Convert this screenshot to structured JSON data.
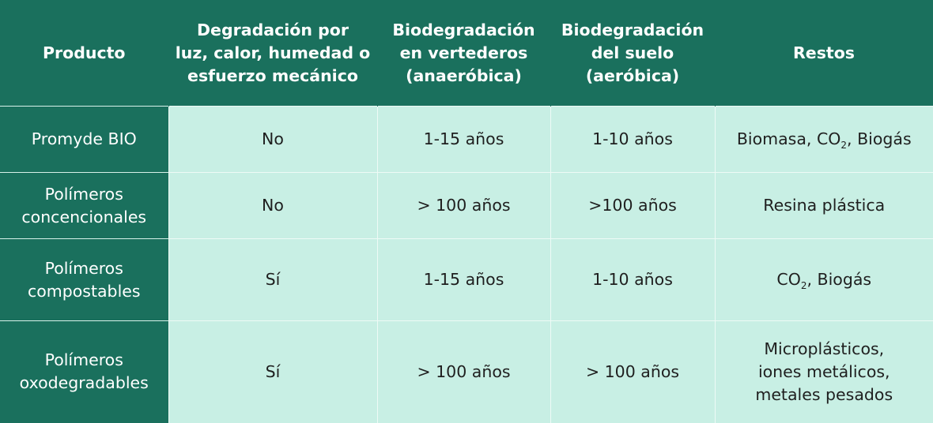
{
  "table": {
    "headers": [
      "Producto",
      "Degradación por\nluz, calor, humedad o\nesfuerzo mecánico",
      "Biodegradación\nen vertederos\n(anaeróbica)",
      "Biodegradación\ndel suelo\n(aeróbica)",
      "Restos"
    ],
    "rows": [
      {
        "product": "Promyde BIO",
        "degradation": "No",
        "landfill": "1-15 años",
        "soil": "1-10 años",
        "residues_prefix": "Biomasa, CO",
        "residues_sub": "2",
        "residues_suffix": ", Biogás"
      },
      {
        "product": "Polímeros\nconcencionales",
        "degradation": "No",
        "landfill": "> 100 años",
        "soil": ">100 años",
        "residues": "Resina plástica"
      },
      {
        "product": "Polímeros\ncompostables",
        "degradation": "Sí",
        "landfill": "1-15 años",
        "soil": "1-10 años",
        "residues_prefix": "CO",
        "residues_sub": "2",
        "residues_suffix": ", Biogás"
      },
      {
        "product": "Polímeros\noxodegradables",
        "degradation": "Sí",
        "landfill": "> 100 años",
        "soil": "> 100 años",
        "residues": " Microplásticos,\niones metálicos,\nmetales pesados"
      }
    ]
  },
  "colors": {
    "header_bg": "#1a705d",
    "cell_bg": "#c8efe4",
    "header_text": "#ffffff",
    "cell_text": "#1f1f1f"
  }
}
